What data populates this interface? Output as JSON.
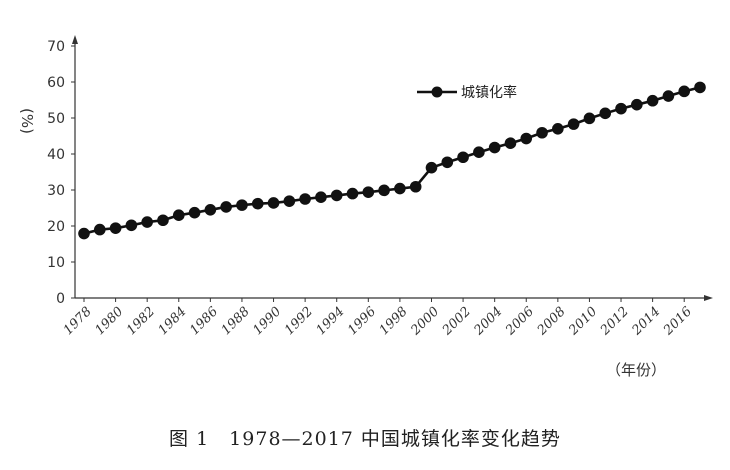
{
  "chart_data": {
    "type": "line",
    "ylabel": "(%)",
    "xlabel": "（年份）",
    "ylim": [
      0,
      70
    ],
    "yticks": [
      0,
      10,
      20,
      30,
      40,
      50,
      60,
      70
    ],
    "xtick_labels": [
      "1978",
      "1980",
      "1982",
      "1984",
      "1986",
      "1988",
      "1990",
      "1992",
      "1994",
      "1996",
      "1998",
      "2000",
      "2002",
      "2004",
      "2006",
      "2008",
      "2010",
      "2012",
      "2014",
      "2016"
    ],
    "legend_position": "top-center",
    "grid": false,
    "x": [
      1978,
      1979,
      1980,
      1981,
      1982,
      1983,
      1984,
      1985,
      1986,
      1987,
      1988,
      1989,
      1990,
      1991,
      1992,
      1993,
      1994,
      1995,
      1996,
      1997,
      1998,
      1999,
      2000,
      2001,
      2002,
      2003,
      2004,
      2005,
      2006,
      2007,
      2008,
      2009,
      2010,
      2011,
      2012,
      2013,
      2014,
      2015,
      2016,
      2017
    ],
    "series": [
      {
        "name": "城镇化率",
        "color": "#111111",
        "values": [
          17.9,
          19.0,
          19.4,
          20.2,
          21.1,
          21.6,
          23.0,
          23.7,
          24.5,
          25.3,
          25.8,
          26.2,
          26.4,
          26.9,
          27.5,
          28.0,
          28.5,
          29.0,
          29.4,
          29.9,
          30.4,
          30.9,
          36.2,
          37.7,
          39.1,
          40.5,
          41.8,
          43.0,
          44.3,
          45.9,
          47.0,
          48.3,
          49.9,
          51.3,
          52.6,
          53.7,
          54.8,
          56.1,
          57.4,
          58.5
        ]
      }
    ]
  },
  "caption": "图 1　1978—2017 中国城镇化率变化趋势"
}
